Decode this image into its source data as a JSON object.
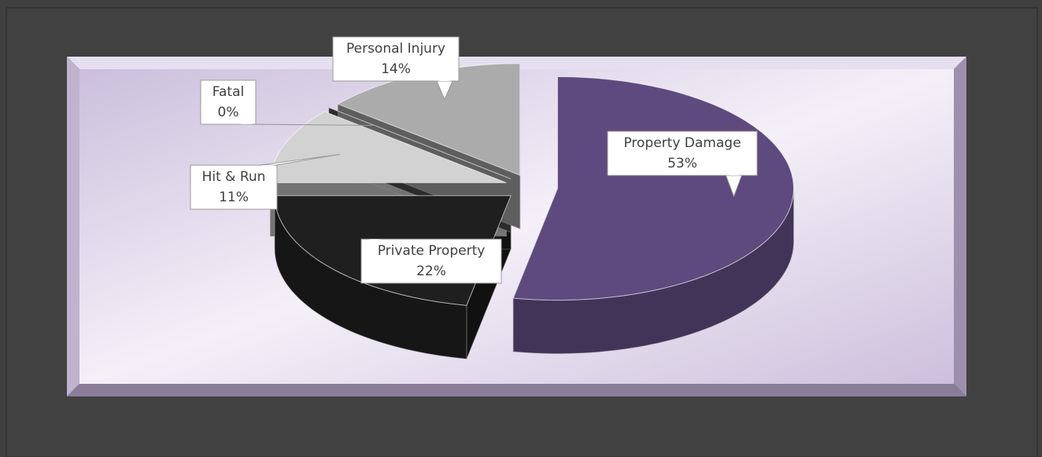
{
  "chart_data": {
    "type": "pie",
    "categories": [
      "Property Damage",
      "Private Property",
      "Hit & Run",
      "Fatal",
      "Personal Injury"
    ],
    "values": [
      53,
      22,
      11,
      0,
      14
    ],
    "value_labels": [
      "53%",
      "22%",
      "11%",
      "0%",
      "14%"
    ],
    "colors": [
      "#5e4a7e",
      "#1f1f1f",
      "#d2d2d2",
      "#505050",
      "#ababab"
    ]
  }
}
